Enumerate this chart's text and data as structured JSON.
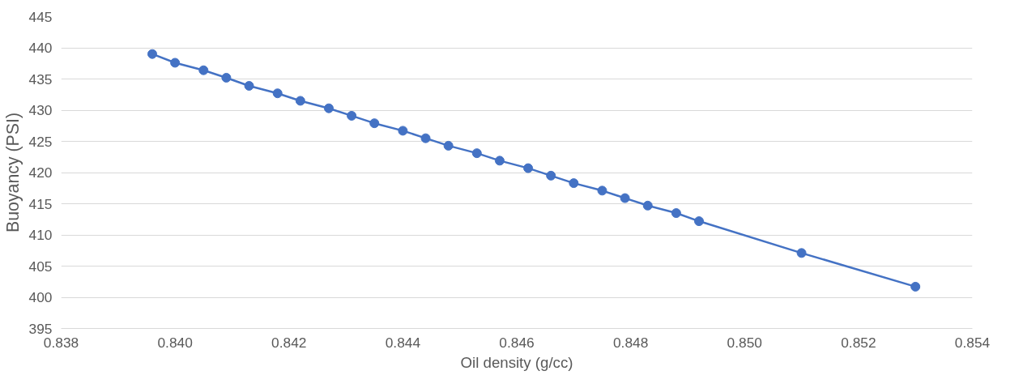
{
  "chart_data": {
    "type": "line",
    "xlabel": "Oil density (g/cc)",
    "ylabel": "Buoyancy (PSI)",
    "x": [
      0.8396,
      0.84,
      0.8405,
      0.8409,
      0.8413,
      0.8418,
      0.8422,
      0.8427,
      0.8431,
      0.8435,
      0.844,
      0.8444,
      0.8448,
      0.8453,
      0.8457,
      0.8462,
      0.8466,
      0.847,
      0.8475,
      0.8479,
      0.8483,
      0.8488,
      0.8492,
      0.851,
      0.853
    ],
    "series": [
      {
        "color": "#4472c4",
        "values": [
          439.0,
          437.6,
          436.4,
          435.2,
          433.9,
          432.7,
          431.5,
          430.3,
          429.1,
          427.9,
          426.7,
          425.5,
          424.3,
          423.1,
          421.9,
          420.7,
          419.5,
          418.3,
          417.1,
          415.9,
          414.7,
          413.5,
          412.2,
          407.1,
          401.7
        ]
      }
    ],
    "xlim": [
      0.838,
      0.854
    ],
    "xticks": [
      {
        "value": 0.838,
        "label": "0.838"
      },
      {
        "value": 0.84,
        "label": "0.840"
      },
      {
        "value": 0.842,
        "label": "0.842"
      },
      {
        "value": 0.844,
        "label": "0.844"
      },
      {
        "value": 0.846,
        "label": "0.846"
      },
      {
        "value": 0.848,
        "label": "0.848"
      },
      {
        "value": 0.85,
        "label": "0.850"
      },
      {
        "value": 0.852,
        "label": "0.852"
      },
      {
        "value": 0.854,
        "label": "0.854"
      }
    ],
    "ylim": [
      395,
      445
    ],
    "yticks": [
      395,
      400,
      405,
      410,
      415,
      420,
      425,
      430,
      435,
      440,
      445
    ],
    "grid": "y",
    "marker": "circle",
    "line_style": "solid"
  }
}
